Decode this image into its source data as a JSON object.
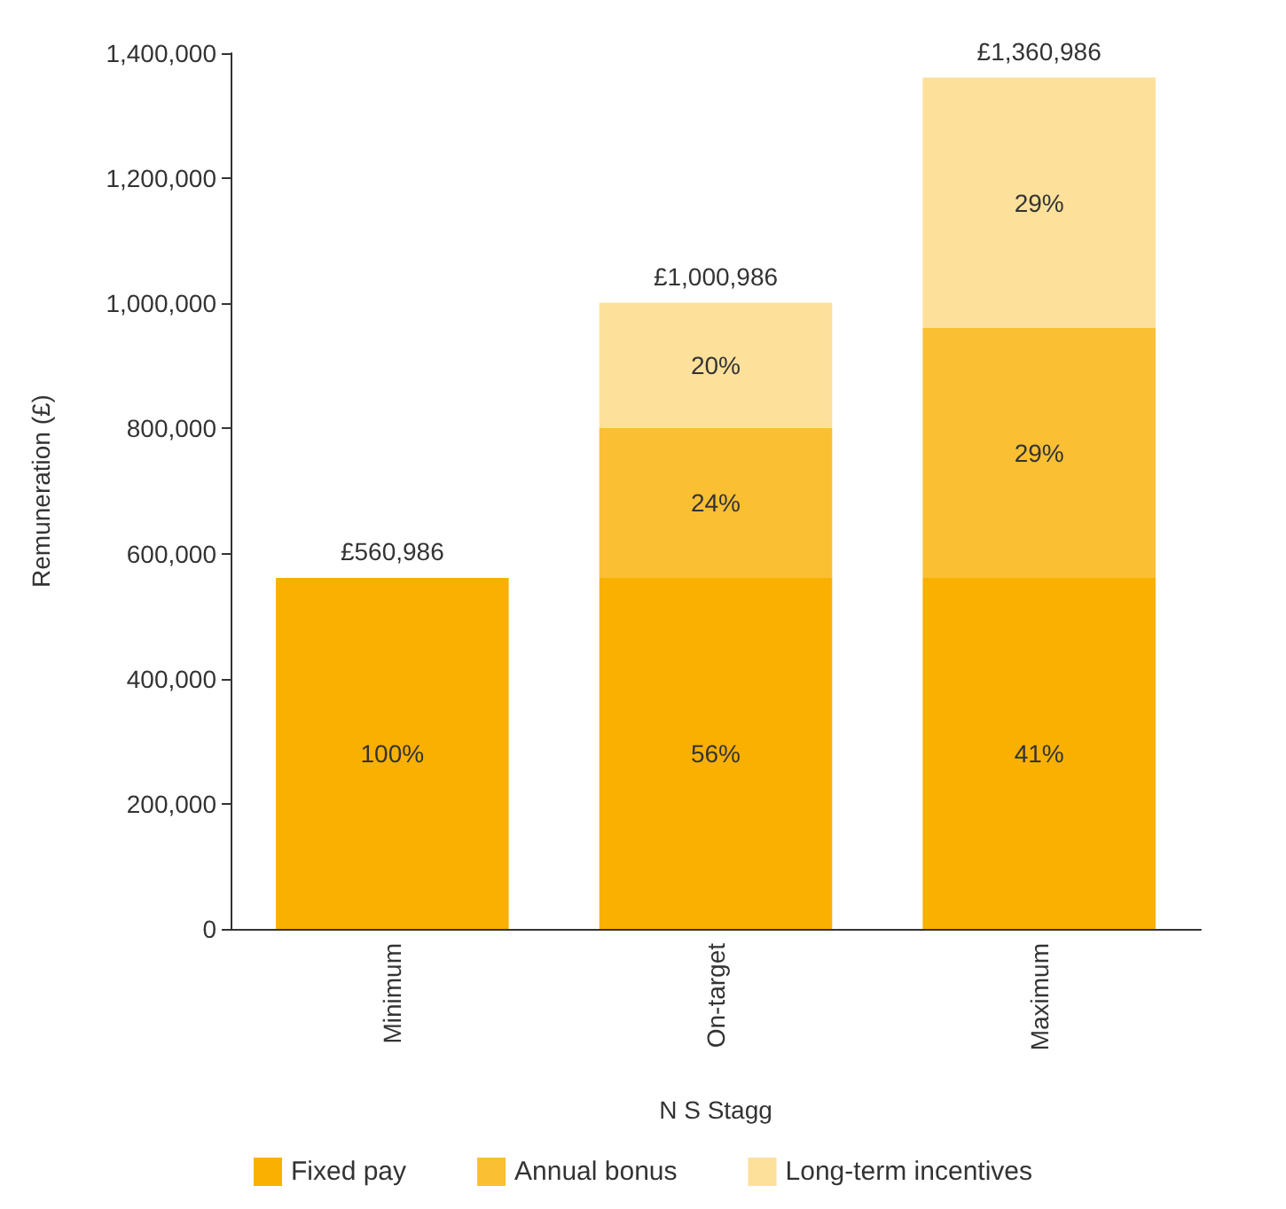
{
  "chart_data": {
    "type": "bar",
    "stacked": true,
    "xlabel": "N S Stagg",
    "ylabel": "Remuneration (£)",
    "categories": [
      "Minimum",
      "On-target",
      "Maximum"
    ],
    "series": [
      {
        "name": "Fixed pay",
        "color": "#f9b000",
        "values": [
          560986,
          560986,
          560986
        ]
      },
      {
        "name": "Annual bonus",
        "color": "#fabf33",
        "values": [
          null,
          240000,
          400000
        ]
      },
      {
        "name": "Long-term incentives",
        "color": "#fde09a",
        "values": [
          null,
          200000,
          400000
        ]
      }
    ],
    "annotations": [
      "100%",
      "56%",
      "24%",
      "20%",
      "41%",
      "29%",
      "29%"
    ],
    "totals": [
      "£560,986",
      "£1,000,986",
      "£1,360,986"
    ],
    "ylim": [
      0,
      1400000
    ],
    "yticks": [
      0,
      {
        "value": 200000,
        "label": "200,000"
      },
      {
        "value": 400000,
        "label": "400,000"
      },
      {
        "value": 600000,
        "label": "600,000"
      },
      {
        "value": 800000,
        "label": "800,000"
      },
      {
        "value": 1000000,
        "label": "1,000,000"
      },
      {
        "value": 1200000,
        "label": "1,200,000"
      },
      {
        "value": 1400000,
        "label": "1,400,000"
      }
    ],
    "grid": false,
    "legend": "bottom"
  }
}
